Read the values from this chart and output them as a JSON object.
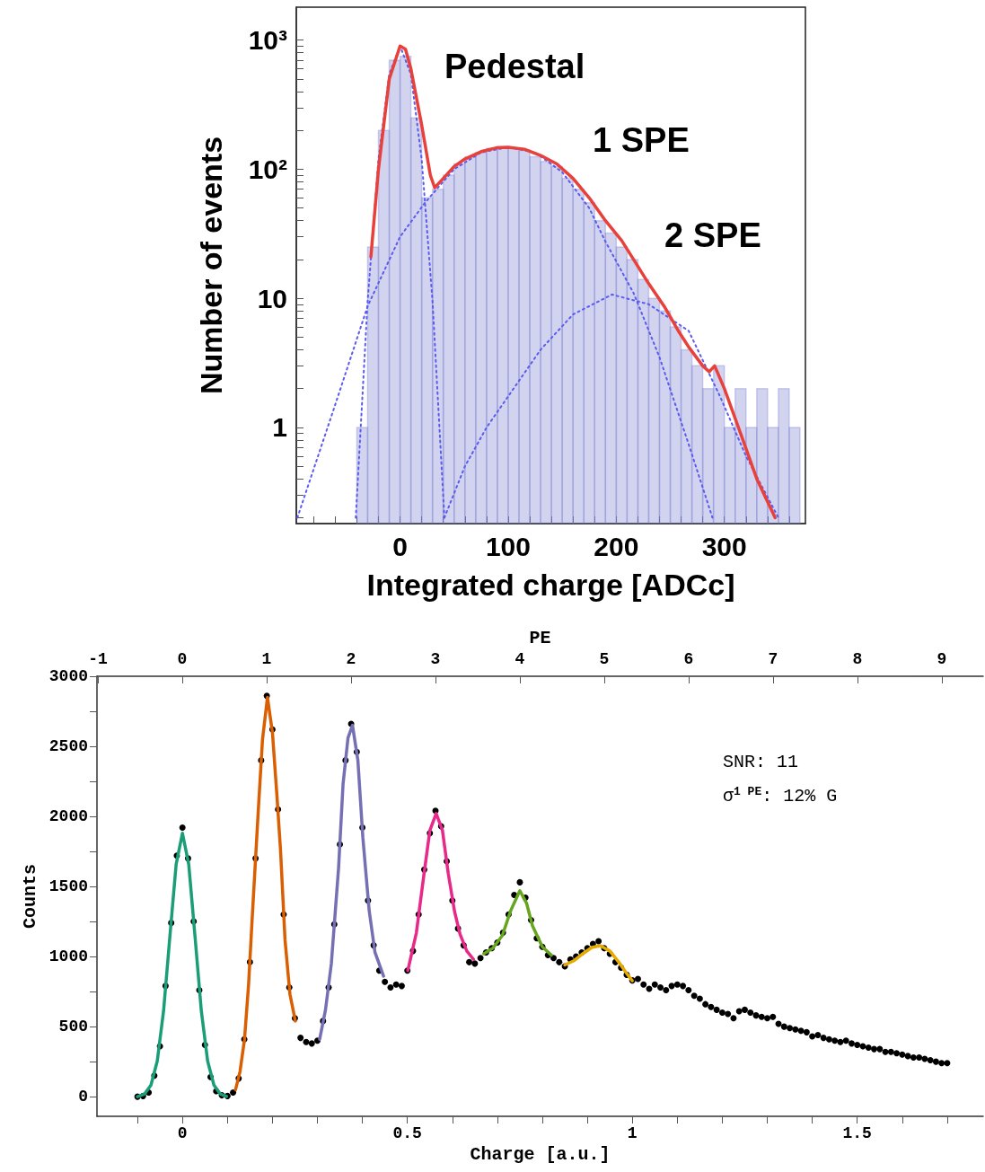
{
  "chart_data": [
    {
      "type": "line",
      "xlabel": "Integrated charge [ADCc]",
      "ylabel": "Number of events",
      "log": "y",
      "xlim": [
        -96,
        375
      ],
      "ylim": [
        0.18,
        1800
      ],
      "xticks": [
        {
          "value": -80,
          "label": null
        },
        {
          "value": -60,
          "label": null
        },
        {
          "value": -40,
          "label": null
        },
        {
          "value": -20,
          "label": null
        },
        0,
        {
          "value": 20,
          "label": null
        },
        {
          "value": 40,
          "label": null
        },
        {
          "value": 60,
          "label": null
        },
        {
          "value": 80,
          "label": null
        },
        100,
        {
          "value": 120,
          "label": null
        },
        {
          "value": 140,
          "label": null
        },
        {
          "value": 160,
          "label": null
        },
        {
          "value": 180,
          "label": null
        },
        200,
        {
          "value": 220,
          "label": null
        },
        {
          "value": 240,
          "label": null
        },
        {
          "value": 260,
          "label": null
        },
        {
          "value": 280,
          "label": null
        },
        300,
        {
          "value": 320,
          "label": null
        },
        {
          "value": 340,
          "label": null
        },
        {
          "value": 360,
          "label": null
        }
      ],
      "yticks": [
        {
          "value": 0.2,
          "label": null
        },
        {
          "value": 0.3,
          "label": null
        },
        {
          "value": 0.4,
          "label": null
        },
        {
          "value": 0.5,
          "label": null
        },
        {
          "value": 0.6,
          "label": null
        },
        {
          "value": 0.7,
          "label": null
        },
        {
          "value": 0.8,
          "label": null
        },
        {
          "value": 0.9,
          "label": null
        },
        1,
        {
          "value": 2,
          "label": null
        },
        {
          "value": 3,
          "label": null
        },
        {
          "value": 4,
          "label": null
        },
        {
          "value": 5,
          "label": null
        },
        {
          "value": 6,
          "label": null
        },
        {
          "value": 7,
          "label": null
        },
        {
          "value": 8,
          "label": null
        },
        {
          "value": 9,
          "label": null
        },
        10,
        {
          "value": 20,
          "label": null
        },
        {
          "value": 30,
          "label": null
        },
        {
          "value": 40,
          "label": null
        },
        {
          "value": 50,
          "label": null
        },
        {
          "value": 60,
          "label": null
        },
        {
          "value": 70,
          "label": null
        },
        {
          "value": 80,
          "label": null
        },
        {
          "value": 90,
          "label": null
        },
        {
          "value": 100,
          "label": "10²"
        },
        {
          "value": 200,
          "label": null
        },
        {
          "value": 300,
          "label": null
        },
        {
          "value": 400,
          "label": null
        },
        {
          "value": 500,
          "label": null
        },
        {
          "value": 600,
          "label": null
        },
        {
          "value": 700,
          "label": null
        },
        {
          "value": 800,
          "label": null
        },
        {
          "value": 900,
          "label": null
        },
        {
          "value": 1000,
          "label": "10³"
        }
      ],
      "grid": false,
      "annotations": [
        "Pedestal",
        "1 SPE",
        "2 SPE"
      ],
      "series": [
        {
          "type": "histogram",
          "color": "#7b80d0",
          "bins": [
            -40,
            -30,
            -20,
            -10,
            0,
            10,
            20,
            30,
            40,
            50,
            60,
            70,
            80,
            90,
            100,
            110,
            120,
            130,
            140,
            150,
            160,
            170,
            180,
            190,
            200,
            210,
            220,
            230,
            240,
            250,
            260,
            270,
            280,
            290,
            300,
            310,
            320,
            330,
            340,
            350,
            360,
            370
          ],
          "values": [
            1,
            25,
            200,
            700,
            750,
            250,
            60,
            70,
            90,
            110,
            125,
            135,
            145,
            150,
            145,
            140,
            125,
            115,
            105,
            85,
            70,
            55,
            40,
            32,
            25,
            20,
            14,
            10,
            8,
            6,
            4,
            3,
            2,
            3,
            1,
            2,
            1,
            2,
            1,
            2,
            1
          ]
        },
        {
          "color": "#5b5bf0",
          "line_style": "dotted",
          "x": [
            -41,
            -30,
            -20,
            -10,
            0,
            10,
            20,
            30,
            41
          ],
          "values": [
            0.2,
            9.5,
            119,
            545,
            900,
            545,
            119,
            9.5,
            0.2
          ]
        },
        {
          "color": "#5b5bf0",
          "line_style": "dotted",
          "x": [
            -95,
            -60,
            -30,
            0,
            23,
            50,
            75,
            100,
            125,
            150,
            175,
            190,
            216,
            240,
            267,
            289
          ],
          "values": [
            0.2,
            1.5,
            8.7,
            30,
            55,
            100,
            135,
            148,
            135,
            95,
            50,
            27.5,
            11,
            3.5,
            0.74,
            0.2
          ]
        },
        {
          "color": "#5b5bf0",
          "line_style": "dotted",
          "x": [
            41,
            60,
            80,
            100,
            130,
            160,
            196,
            230,
            267,
            296,
            320,
            350
          ],
          "values": [
            0.2,
            0.5,
            1.0,
            1.74,
            4,
            7.5,
            10.7,
            9,
            5.6,
            1.74,
            0.6,
            0.2
          ]
        },
        {
          "color": "#e8413c",
          "line_style": "solid",
          "x": [
            -27,
            -20,
            -10,
            0,
            5,
            10,
            20,
            28,
            32,
            40,
            50,
            60,
            75,
            90,
            100,
            115,
            130,
            145,
            160,
            175,
            190,
            205,
            216,
            230,
            245,
            258,
            267,
            280,
            286,
            291,
            300,
            315,
            330,
            347
          ],
          "values": [
            21,
            100,
            500,
            900,
            850,
            600,
            220,
            90,
            72,
            85,
            105,
            120,
            137,
            147,
            148,
            143,
            128,
            110,
            85,
            60,
            40,
            28,
            20,
            13,
            8.5,
            5.5,
            4.2,
            3.0,
            2.7,
            3.0,
            2.0,
            0.9,
            0.4,
            0.2
          ]
        }
      ]
    },
    {
      "type": "line",
      "xlabel": "Charge [a.u.]",
      "ylabel": "Counts",
      "x2label": "PE",
      "xlim": [
        -0.19,
        1.78
      ],
      "ylim": [
        -140,
        3000
      ],
      "x2lim": [
        -1.01,
        9.49
      ],
      "xticks": [
        {
          "value": -0.1,
          "label": null
        },
        0,
        {
          "value": 0.1,
          "label": null
        },
        {
          "value": 0.2,
          "label": null
        },
        {
          "value": 0.3,
          "label": null
        },
        {
          "value": 0.4,
          "label": null
        },
        0.5,
        {
          "value": 0.6,
          "label": null
        },
        {
          "value": 0.7,
          "label": null
        },
        {
          "value": 0.8,
          "label": null
        },
        {
          "value": 0.9,
          "label": null
        },
        1,
        {
          "value": 1.1,
          "label": null
        },
        {
          "value": 1.2,
          "label": null
        },
        {
          "value": 1.3,
          "label": null
        },
        {
          "value": 1.4,
          "label": null
        },
        1.5,
        {
          "value": 1.6,
          "label": null
        },
        {
          "value": 1.7,
          "label": null
        }
      ],
      "x2ticks": [
        -1,
        0,
        1,
        2,
        3,
        4,
        5,
        6,
        7,
        8,
        9
      ],
      "yticks": [
        0,
        {
          "value": 250,
          "label": null
        },
        500,
        {
          "value": 750,
          "label": null
        },
        1000,
        {
          "value": 1250,
          "label": null
        },
        1500,
        {
          "value": 1750,
          "label": null
        },
        2000,
        {
          "value": 2250,
          "label": null
        },
        2500,
        {
          "value": 2750,
          "label": null
        },
        3000
      ],
      "grid": false,
      "annotations": [
        "SNR: 11",
        "σ$^{1 PE}$: 12% G"
      ],
      "series": [
        {
          "type": "scatter",
          "color": "#000000",
          "marker": "circle",
          "x": [
            -0.1,
            -0.0875,
            -0.075,
            -0.0625,
            -0.05,
            -0.0375,
            -0.025,
            -0.0125,
            0,
            0.0125,
            0.025,
            0.0375,
            0.05,
            0.0625,
            0.075,
            0.0875,
            0.1,
            0.1125,
            0.125,
            0.1375,
            0.15,
            0.1625,
            0.175,
            0.1875,
            0.2,
            0.2125,
            0.225,
            0.2375,
            0.25,
            0.2625,
            0.275,
            0.2875,
            0.3,
            0.3125,
            0.325,
            0.3375,
            0.35,
            0.3625,
            0.375,
            0.3875,
            0.4,
            0.4125,
            0.425,
            0.4375,
            0.45,
            0.4625,
            0.475,
            0.4875,
            0.5,
            0.5125,
            0.525,
            0.5375,
            0.55,
            0.5625,
            0.575,
            0.5875,
            0.6,
            0.6125,
            0.625,
            0.6375,
            0.65,
            0.6625,
            0.675,
            0.6875,
            0.7,
            0.7125,
            0.725,
            0.7375,
            0.75,
            0.7625,
            0.775,
            0.7875,
            0.8,
            0.8125,
            0.825,
            0.8375,
            0.85,
            0.8625,
            0.875,
            0.8875,
            0.9,
            0.9125,
            0.925,
            0.9375,
            0.95,
            0.9625,
            0.975,
            0.9875,
            1.0,
            1.0125,
            1.025,
            1.0375,
            1.05,
            1.0625,
            1.075,
            1.0875,
            1.1,
            1.1125,
            1.125,
            1.1375,
            1.15,
            1.1625,
            1.175,
            1.1875,
            1.2,
            1.2125,
            1.225,
            1.2375,
            1.25,
            1.2625,
            1.275,
            1.2875,
            1.3,
            1.3125,
            1.325,
            1.3375,
            1.35,
            1.3625,
            1.375,
            1.3875,
            1.4,
            1.4125,
            1.425,
            1.4375,
            1.45,
            1.4625,
            1.475,
            1.4875,
            1.5,
            1.5125,
            1.525,
            1.5375,
            1.55,
            1.5625,
            1.575,
            1.5875,
            1.6,
            1.6125,
            1.625,
            1.6375,
            1.65,
            1.6625,
            1.675,
            1.6875,
            1.7
          ],
          "values": [
            0,
            5,
            30,
            150,
            360,
            790,
            1240,
            1720,
            1920,
            1700,
            1250,
            760,
            370,
            140,
            40,
            10,
            5,
            30,
            130,
            410,
            960,
            1700,
            2400,
            2860,
            2620,
            2050,
            1300,
            780,
            560,
            420,
            390,
            380,
            400,
            540,
            780,
            1230,
            1800,
            2400,
            2660,
            2460,
            1920,
            1400,
            1080,
            900,
            820,
            780,
            800,
            790,
            900,
            1040,
            1300,
            1620,
            1880,
            2040,
            1930,
            1680,
            1400,
            1200,
            1080,
            960,
            950,
            990,
            1030,
            1060,
            1100,
            1170,
            1300,
            1440,
            1530,
            1420,
            1260,
            1130,
            1070,
            1010,
            990,
            960,
            930,
            980,
            1000,
            1030,
            1060,
            1090,
            1110,
            1060,
            1020,
            960,
            920,
            870,
            830,
            840,
            800,
            770,
            800,
            780,
            760,
            790,
            800,
            790,
            760,
            720,
            700,
            660,
            640,
            620,
            600,
            590,
            560,
            610,
            620,
            600,
            580,
            570,
            560,
            570,
            520,
            500,
            490,
            480,
            470,
            460,
            430,
            440,
            420,
            410,
            400,
            390,
            400,
            380,
            370,
            360,
            350,
            340,
            340,
            320,
            320,
            310,
            300,
            290,
            280,
            280,
            270,
            260,
            250,
            240,
            240
          ]
        },
        {
          "color": "#1b9e77",
          "x": [
            -0.1,
            -0.084,
            -0.07,
            -0.056,
            -0.042,
            -0.028,
            -0.014,
            0,
            0.014,
            0.028,
            0.042,
            0.056,
            0.07,
            0.084,
            0.098
          ],
          "values": [
            0,
            20,
            83,
            254,
            611,
            1141,
            1658,
            1880,
            1658,
            1141,
            611,
            254,
            83,
            20,
            2
          ]
        },
        {
          "color": "#d95f02",
          "x": [
            0.118,
            0.128,
            0.138,
            0.147,
            0.155,
            0.168,
            0.178,
            0.189,
            0.2,
            0.21,
            0.218,
            0.228,
            0.239,
            0.251
          ],
          "values": [
            50,
            180,
            410,
            800,
            1270,
            2010,
            2550,
            2850,
            2600,
            2150,
            1760,
            1120,
            730,
            540
          ]
        },
        {
          "color": "#7570b3",
          "x": [
            0.305,
            0.318,
            0.331,
            0.347,
            0.357,
            0.368,
            0.378,
            0.39,
            0.401,
            0.415,
            0.428,
            0.447
          ],
          "values": [
            410,
            620,
            950,
            1630,
            2230,
            2560,
            2650,
            2400,
            1850,
            1330,
            1030,
            860
          ]
        },
        {
          "color": "#e7298a",
          "x": [
            0.501,
            0.52,
            0.537,
            0.55,
            0.564,
            0.578,
            0.591,
            0.605,
            0.617,
            0.632,
            0.647
          ],
          "values": [
            900,
            1170,
            1590,
            1900,
            2020,
            1900,
            1590,
            1320,
            1160,
            1040,
            980
          ]
        },
        {
          "color": "#66a61e",
          "x": [
            0.67,
            0.69,
            0.711,
            0.73,
            0.75,
            0.765,
            0.778,
            0.8,
            0.82
          ],
          "values": [
            1020,
            1060,
            1150,
            1330,
            1470,
            1380,
            1220,
            1070,
            1010
          ]
        },
        {
          "color": "#e6ab02",
          "x": [
            0.85,
            0.87,
            0.89,
            0.91,
            0.929,
            0.95,
            0.97,
            0.985,
            1.0
          ],
          "values": [
            940,
            970,
            1020,
            1065,
            1077,
            1040,
            960,
            890,
            827
          ]
        }
      ]
    }
  ]
}
